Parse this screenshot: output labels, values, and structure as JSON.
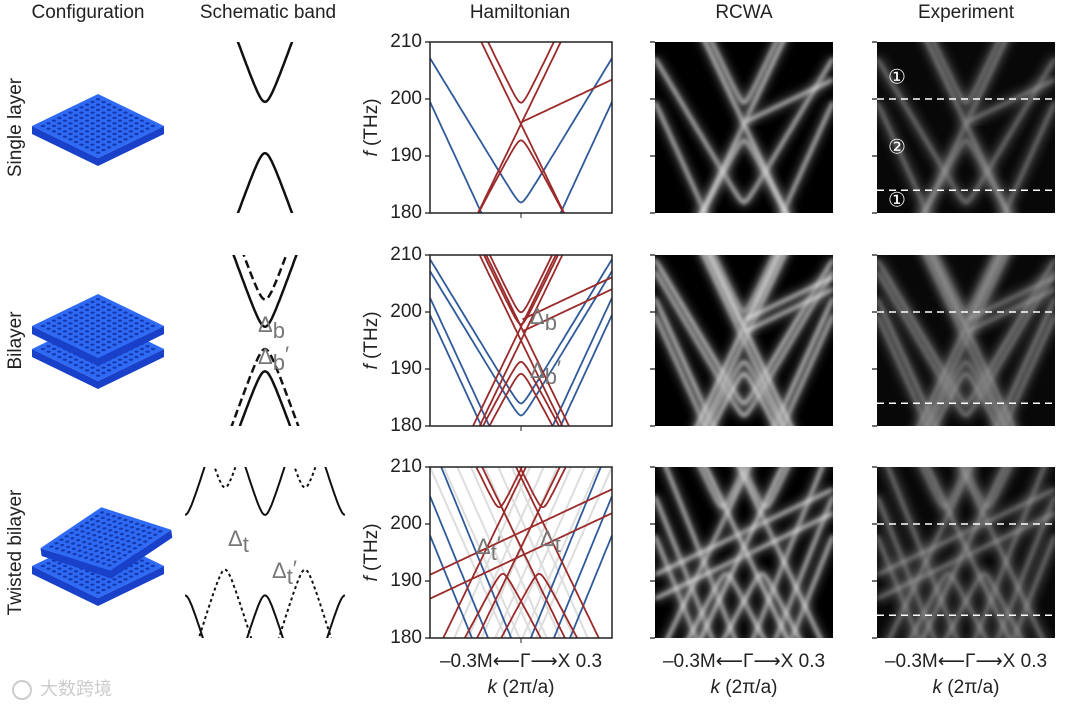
{
  "columns": [
    "Configuration",
    "Schematic band",
    "Hamiltonian",
    "RCWA",
    "Experiment"
  ],
  "rows": [
    "Single layer",
    "Bilayer",
    "Twisted bilayer"
  ],
  "y_axis": {
    "symbol": "f",
    "unit": " (THz)",
    "ylim": [
      180,
      210
    ],
    "yticks": [
      180,
      190,
      200,
      210
    ]
  },
  "x_axis": {
    "symbol": "k",
    "unit": " (2π/a)",
    "tick_label": "–0.3M⟵Γ⟶X 0.3"
  },
  "annotations": {
    "bilayer": [
      {
        "symbol": "Δ",
        "sub": "b",
        "prime": ""
      },
      {
        "symbol": "Δ",
        "sub": "b",
        "prime": "′"
      }
    ],
    "twisted": [
      {
        "symbol": "Δ",
        "sub": "t",
        "prime": ""
      },
      {
        "symbol": "Δ",
        "sub": "t",
        "prime": "′"
      }
    ]
  },
  "experiment": {
    "dashed_f": [
      [
        200,
        184
      ],
      [
        200,
        184
      ],
      [
        200,
        184
      ]
    ],
    "regions": [
      "①",
      "②",
      "①"
    ]
  },
  "watermark": "大数跨境"
}
